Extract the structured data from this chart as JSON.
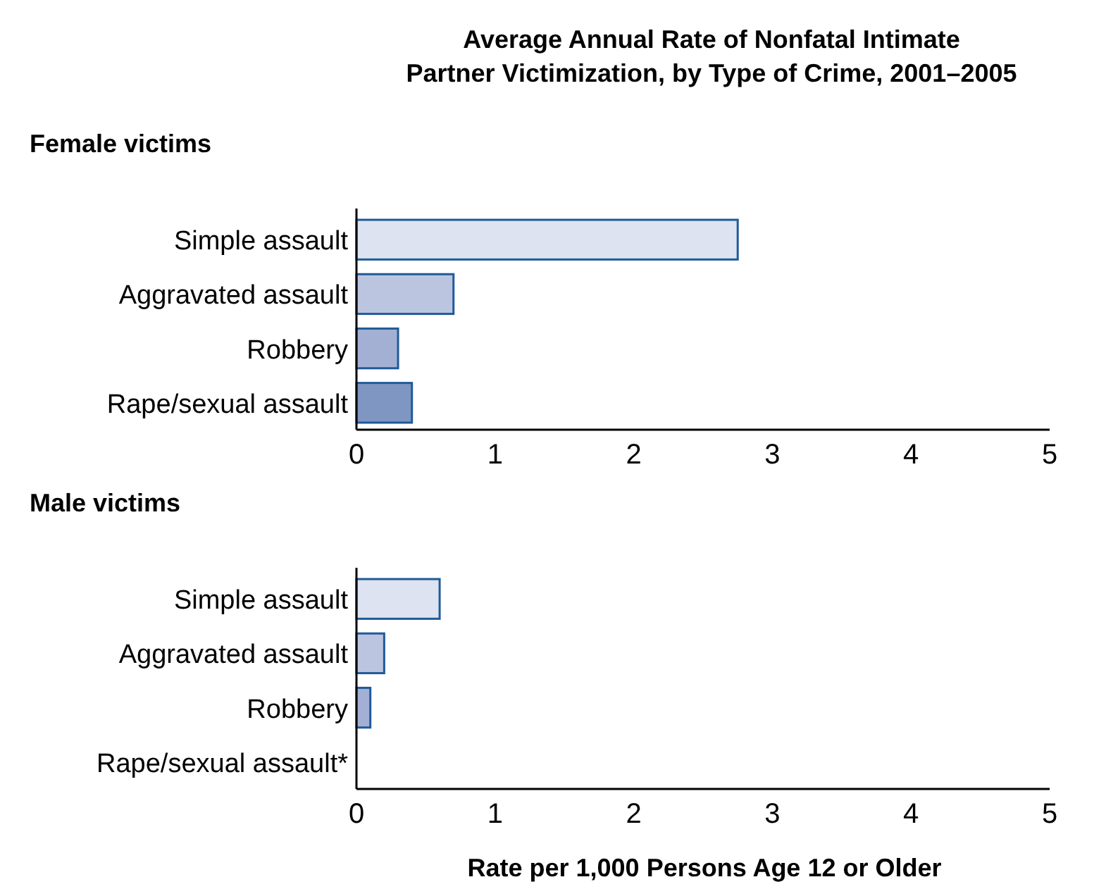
{
  "chart_data": [
    {
      "type": "bar",
      "orientation": "horizontal",
      "title": "Average Annual Rate of Nonfatal Intimate Partner Victimization, by Type of Crime, 2001–2005",
      "subtitle": "Female victims",
      "categories": [
        "Simple assault",
        "Aggravated assault",
        "Robbery",
        "Rape/sexual assault"
      ],
      "values": [
        2.75,
        0.7,
        0.3,
        0.4
      ],
      "colors": [
        "#dde3f0",
        "#bcc5e0",
        "#a3b0d4",
        "#7f95c2"
      ],
      "xlim": [
        0,
        5
      ],
      "xticks": [
        0,
        1,
        2,
        3,
        4,
        5
      ],
      "grid": false
    },
    {
      "type": "bar",
      "orientation": "horizontal",
      "title": "Male victims",
      "xlabel": "Rate per 1,000 Persons Age 12 or Older",
      "categories": [
        "Simple assault",
        "Aggravated assault",
        "Robbery",
        "Rape/sexual assault*"
      ],
      "values": [
        0.6,
        0.2,
        0.1,
        null
      ],
      "colors": [
        "#dde3f0",
        "#bcc5e0",
        "#a3b0d4",
        null
      ],
      "xlim": [
        0,
        5
      ],
      "xticks": [
        0,
        1,
        2,
        3,
        4,
        5
      ],
      "grid": false
    }
  ]
}
